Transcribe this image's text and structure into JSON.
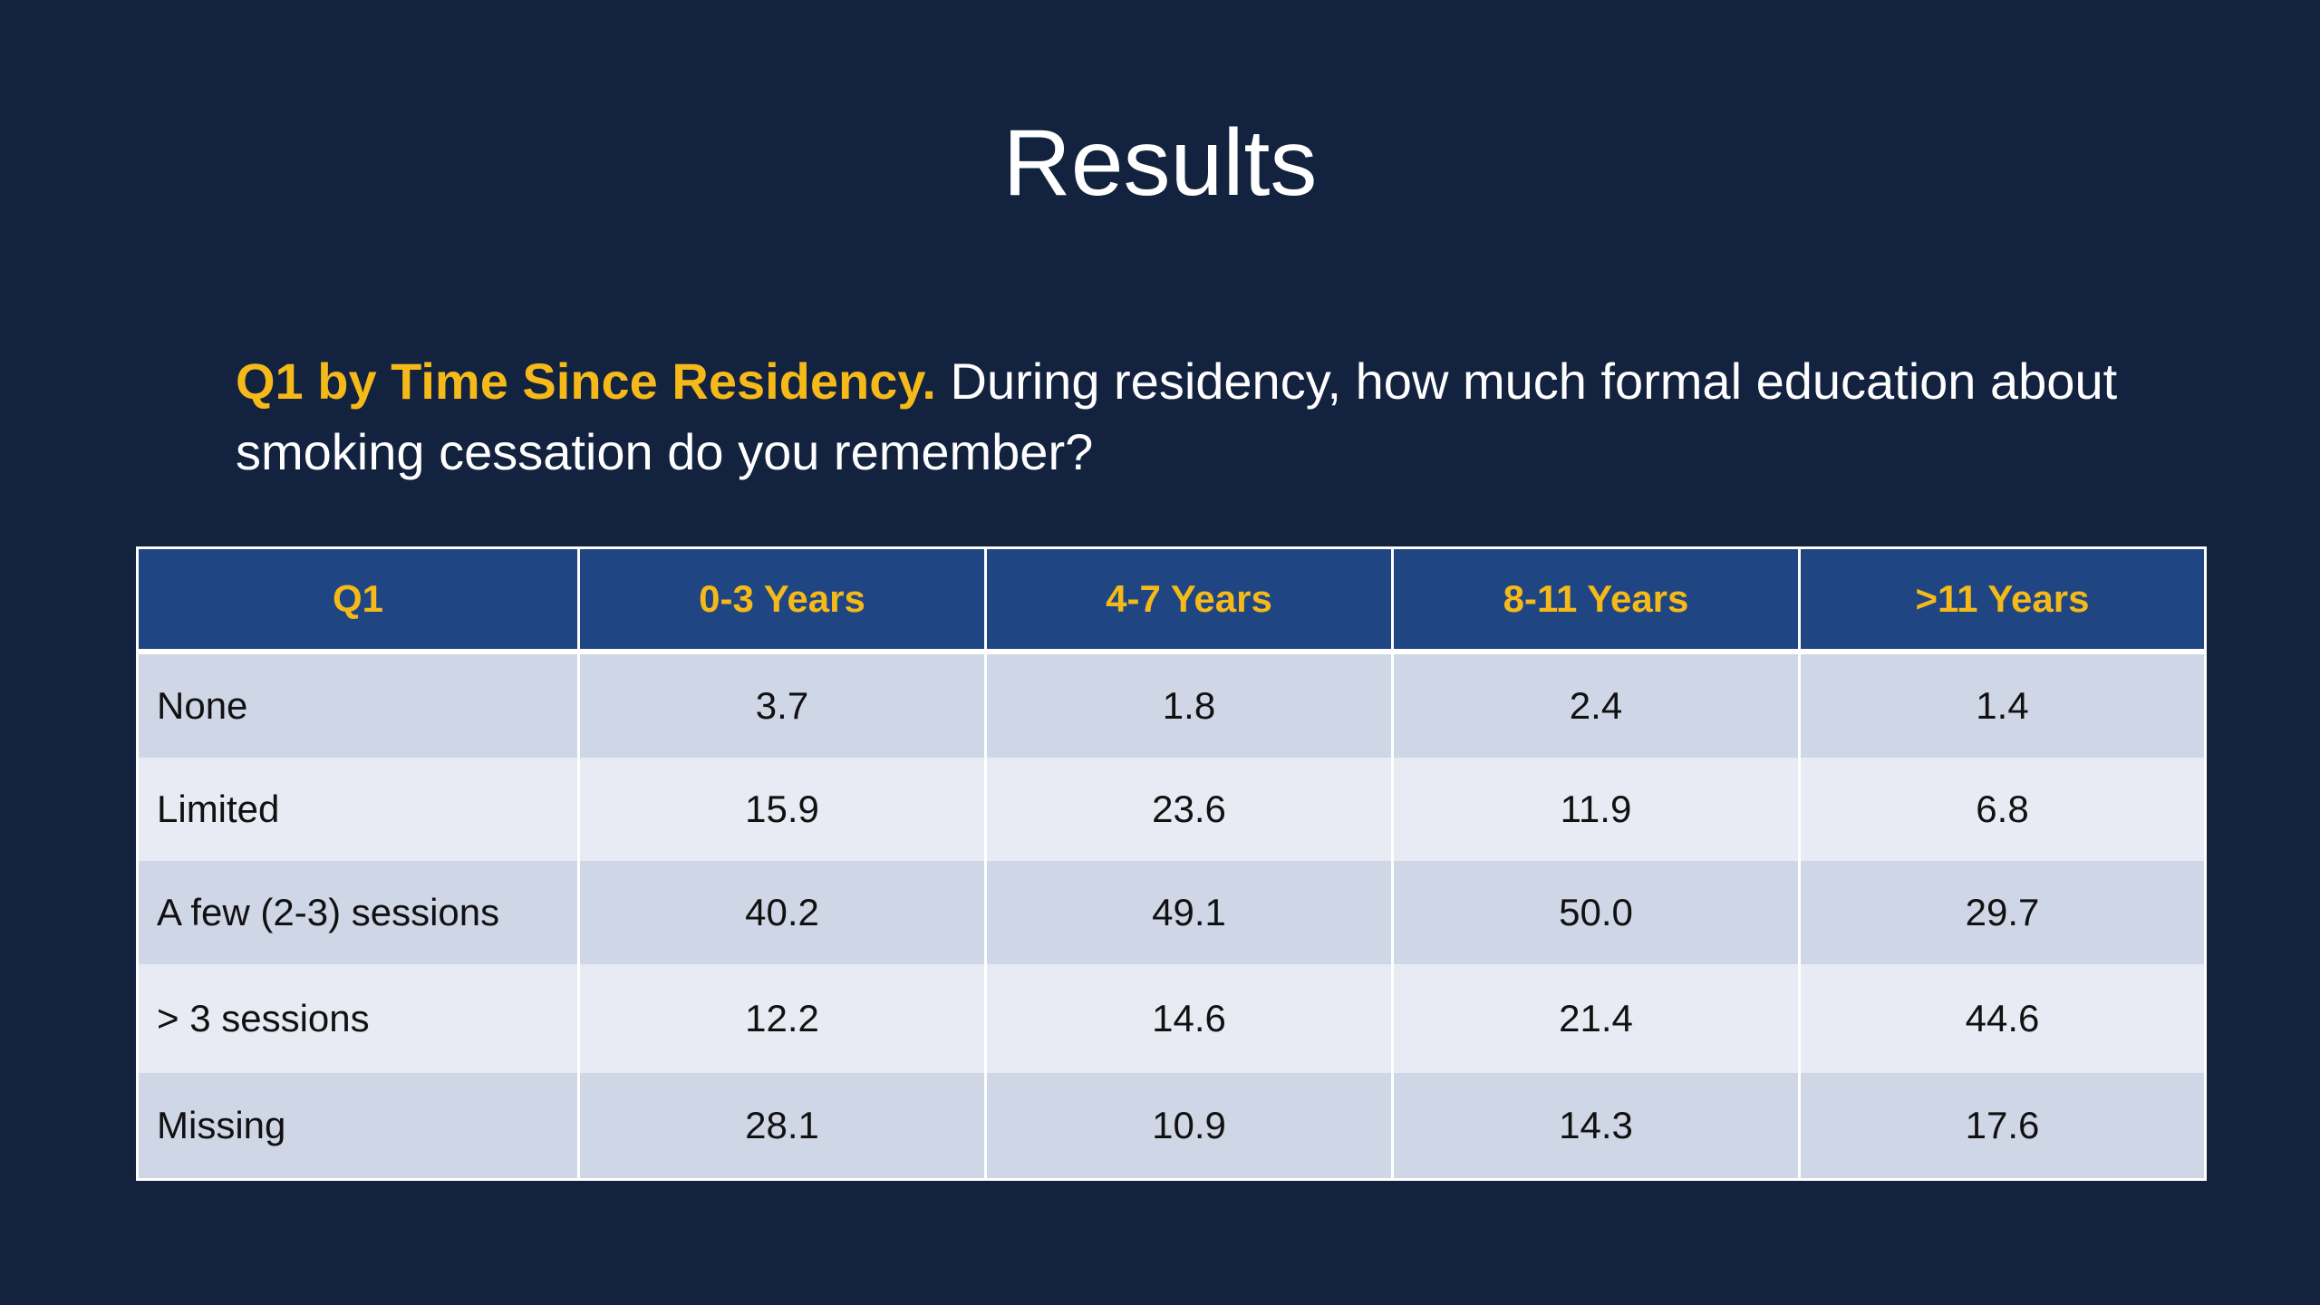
{
  "slide": {
    "title": "Results",
    "question_lead": "Q1 by Time Since Residency.",
    "question_text": " During residency, how much formal education about smoking cessation do you remember?"
  },
  "colors": {
    "background": "#12223f",
    "accent": "#f5b919",
    "header_bg": "#1f4682",
    "row_dark": "#cfd6e6",
    "row_light": "#e8ebf3"
  },
  "table": {
    "headers": [
      "Q1",
      "0-3 Years",
      "4-7 Years",
      "8-11 Years",
      ">11 Years"
    ],
    "rows": [
      {
        "label": "None",
        "values": [
          "3.7",
          "1.8",
          "2.4",
          "1.4"
        ]
      },
      {
        "label": "Limited",
        "values": [
          "15.9",
          "23.6",
          "11.9",
          "6.8"
        ]
      },
      {
        "label": "A few (2-3) sessions",
        "values": [
          "40.2",
          "49.1",
          "50.0",
          "29.7"
        ]
      },
      {
        "label": "> 3 sessions",
        "values": [
          "12.2",
          "14.6",
          "21.4",
          "44.6"
        ]
      },
      {
        "label": "Missing",
        "values": [
          "28.1",
          "10.9",
          "14.3",
          "17.6"
        ]
      }
    ]
  }
}
